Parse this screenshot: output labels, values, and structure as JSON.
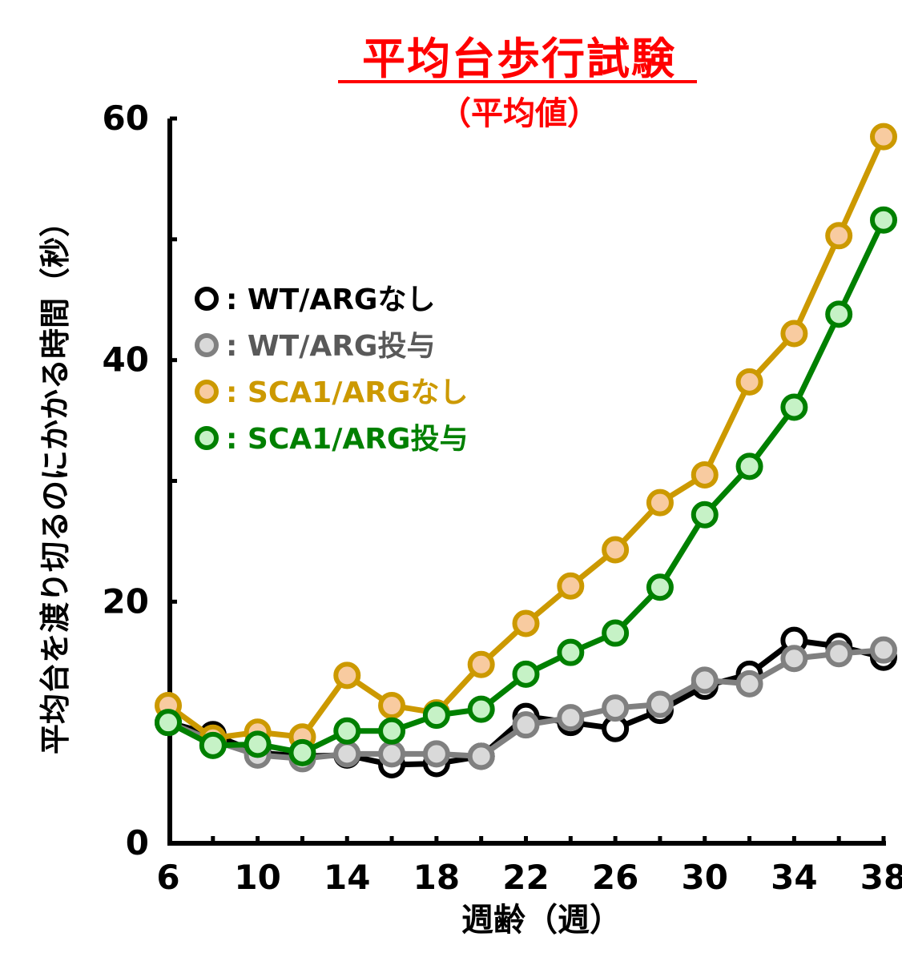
{
  "chart_data": {
    "type": "line",
    "title": "平均台歩行試験",
    "subtitle": "（平均値）",
    "xlabel": "週齢（週）",
    "ylabel": "平均台を渡り切るのにかかる時間（秒）",
    "x": [
      6,
      8,
      10,
      12,
      14,
      16,
      18,
      20,
      22,
      24,
      26,
      28,
      30,
      32,
      34,
      36,
      38
    ],
    "xlim": [
      6,
      38
    ],
    "ylim": [
      0,
      60
    ],
    "x_ticks": [
      "6",
      "10",
      "14",
      "18",
      "22",
      "26",
      "30",
      "34",
      "38"
    ],
    "y_ticks": [
      "0",
      "20",
      "40",
      "60"
    ],
    "grid": false,
    "legend_position": "top-left",
    "series": [
      {
        "name": ": WT/ARGなし",
        "line_color": "#000000",
        "marker_fill": "#ffffff",
        "marker_stroke": "#000000",
        "legend_text_color": "#000000",
        "values": [
          10.0,
          9.0,
          7.5,
          7.2,
          7.3,
          6.5,
          6.6,
          7.2,
          10.5,
          10.0,
          9.5,
          11.0,
          13.0,
          14.0,
          16.8,
          16.3,
          15.4
        ]
      },
      {
        "name": ": WT/ARG投与",
        "line_color": "#808080",
        "marker_fill": "#d9d9d9",
        "marker_stroke": "#808080",
        "legend_text_color": "#595959",
        "values": [
          10.0,
          8.5,
          7.3,
          7.0,
          7.4,
          7.4,
          7.4,
          7.2,
          9.8,
          10.4,
          11.2,
          11.5,
          13.5,
          13.2,
          15.3,
          15.7,
          16.0
        ]
      },
      {
        "name": ": SCA1/ARGなし",
        "line_color": "#cc9900",
        "marker_fill": "#f8cba0",
        "marker_stroke": "#cc9900",
        "legend_text_color": "#cc9900",
        "values": [
          11.4,
          8.7,
          9.2,
          8.8,
          13.9,
          11.4,
          10.8,
          14.8,
          18.2,
          21.3,
          24.3,
          28.2,
          30.5,
          38.2,
          42.2,
          50.3,
          58.5
        ]
      },
      {
        "name": ": SCA1/ARG投与",
        "line_color": "#008000",
        "marker_fill": "#c6f2c6",
        "marker_stroke": "#008000",
        "legend_text_color": "#008000",
        "values": [
          10.0,
          8.1,
          8.2,
          7.5,
          9.3,
          9.3,
          10.6,
          11.1,
          14.0,
          15.8,
          17.4,
          21.2,
          27.2,
          31.2,
          36.1,
          43.8,
          51.6
        ]
      }
    ]
  },
  "colors": {
    "title": "#ff0000",
    "axis": "#000000",
    "tick_label": "#000000"
  }
}
